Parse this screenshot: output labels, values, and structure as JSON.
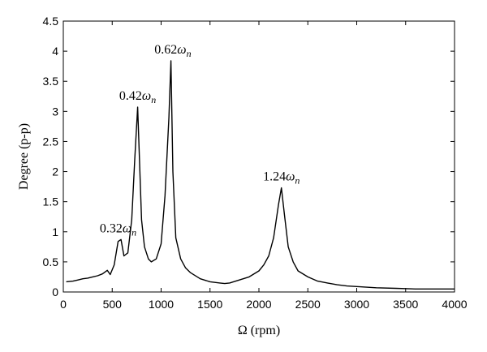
{
  "chart_data": {
    "type": "line",
    "xlabel": "Ω (rpm)",
    "ylabel": "Degree (p-p)",
    "xlim": [
      0,
      4000
    ],
    "ylim": [
      0,
      4.5
    ],
    "xticks": [
      0,
      500,
      1000,
      1500,
      2000,
      2500,
      3000,
      3500,
      4000
    ],
    "xtick_labels": [
      "0",
      "500",
      "1000",
      "1500",
      "2000",
      "2500",
      "3000",
      "3500",
      "4000"
    ],
    "yticks": [
      0,
      0.5,
      1,
      1.5,
      2,
      2.5,
      3,
      3.5,
      4,
      4.5
    ],
    "ytick_labels": [
      "0",
      "0.5",
      "1",
      "1.5",
      "2",
      "2.5",
      "3",
      "3.5",
      "4",
      "4.5"
    ],
    "grid": false,
    "line_color": "#000000",
    "series": [
      {
        "x": [
          30,
          100,
          150,
          200,
          250,
          300,
          350,
          400,
          450,
          480,
          520,
          560,
          590,
          620,
          660,
          700,
          730,
          760,
          800,
          830,
          870,
          900,
          950,
          1000,
          1040,
          1080,
          1100,
          1120,
          1150,
          1200,
          1250,
          1300,
          1400,
          1500,
          1600,
          1650,
          1700,
          1800,
          1900,
          2000,
          2050,
          2100,
          2150,
          2200,
          2230,
          2260,
          2300,
          2350,
          2400,
          2500,
          2600,
          2700,
          2800,
          2900,
          3000,
          3200,
          3400,
          3600,
          3800,
          4000
        ],
        "y": [
          0.17,
          0.18,
          0.2,
          0.22,
          0.23,
          0.25,
          0.27,
          0.3,
          0.36,
          0.29,
          0.45,
          0.84,
          0.87,
          0.6,
          0.65,
          1.2,
          2.2,
          3.07,
          1.2,
          0.75,
          0.55,
          0.5,
          0.55,
          0.8,
          1.6,
          2.9,
          3.84,
          2.0,
          0.9,
          0.55,
          0.4,
          0.32,
          0.22,
          0.17,
          0.15,
          0.14,
          0.15,
          0.2,
          0.25,
          0.35,
          0.45,
          0.6,
          0.9,
          1.45,
          1.73,
          1.3,
          0.75,
          0.5,
          0.35,
          0.25,
          0.18,
          0.15,
          0.12,
          0.1,
          0.09,
          0.07,
          0.06,
          0.05,
          0.05,
          0.05
        ]
      }
    ],
    "annotations": [
      {
        "base": "0.32",
        "symbol": "ω",
        "sub": "n",
        "x": 560,
        "y": 0.87
      },
      {
        "base": "0.42",
        "symbol": "ω",
        "sub": "n",
        "x": 760,
        "y": 3.07
      },
      {
        "base": "0.62",
        "symbol": "ω",
        "sub": "n",
        "x": 1120,
        "y": 3.84
      },
      {
        "base": "1.24",
        "symbol": "ω",
        "sub": "n",
        "x": 2230,
        "y": 1.73
      }
    ]
  }
}
